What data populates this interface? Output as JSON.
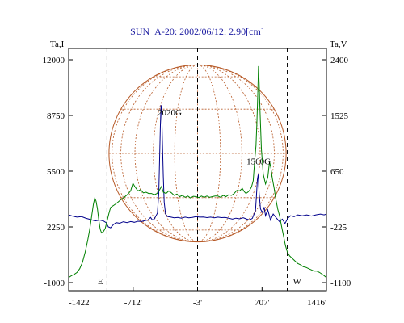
{
  "chart_data": {
    "type": "line",
    "title": "SUN_A-20: 2002/06/12: 2.90[cm]",
    "xlabel": "",
    "ylabel_left": "Ta,I",
    "ylabel_right": "Ta,V",
    "x_range": [
      -1422,
      1416
    ],
    "ylim_left": [
      -1000,
      12000
    ],
    "ylim_right": [
      -1100,
      2400
    ],
    "x_ticks": [
      {
        "value": -1422,
        "label": "-1422'"
      },
      {
        "value": -712,
        "label": "-712'"
      },
      {
        "value": -3,
        "label": "-3'"
      },
      {
        "value": 707,
        "label": "707'"
      },
      {
        "value": 1416,
        "label": "1416'"
      }
    ],
    "y_ticks_left": [
      {
        "value": 12000,
        "label": "12000"
      },
      {
        "value": 8750,
        "label": "8750"
      },
      {
        "value": 5500,
        "label": "5500"
      },
      {
        "value": 2250,
        "label": "2250"
      },
      {
        "value": -1000,
        "label": "-1000"
      }
    ],
    "y_ticks_right": [
      {
        "value": 2400,
        "label": "2400"
      },
      {
        "value": 1525,
        "label": "1525"
      },
      {
        "value": 650,
        "label": "650"
      },
      {
        "value": -225,
        "label": "-225"
      },
      {
        "value": -1100,
        "label": "-1100"
      }
    ],
    "vertical_markers": [
      {
        "x": -1000,
        "label": "E"
      },
      {
        "x": -3,
        "label": ""
      },
      {
        "x": 985,
        "label": "W"
      }
    ],
    "annotations": [
      {
        "text": "2020G",
        "x": -310,
        "y": 8750
      },
      {
        "text": "1560G",
        "x": 670,
        "y": 5900
      }
    ],
    "solar_disk": {
      "center_x": -3,
      "radius_arcmin": 975,
      "color": "#b85c2a"
    },
    "grid": false,
    "series": [
      {
        "axis": "left",
        "color": "#00008b",
        "points": [
          [
            -1422,
            2950
          ],
          [
            -1380,
            2880
          ],
          [
            -1330,
            2820
          ],
          [
            -1280,
            2850
          ],
          [
            -1230,
            2750
          ],
          [
            -1180,
            2680
          ],
          [
            -1130,
            2600
          ],
          [
            -1080,
            2650
          ],
          [
            -1040,
            2600
          ],
          [
            -1010,
            2500
          ],
          [
            -985,
            2250
          ],
          [
            -960,
            2200
          ],
          [
            -930,
            2380
          ],
          [
            -900,
            2500
          ],
          [
            -860,
            2460
          ],
          [
            -820,
            2550
          ],
          [
            -780,
            2500
          ],
          [
            -740,
            2560
          ],
          [
            -700,
            2520
          ],
          [
            -660,
            2580
          ],
          [
            -620,
            2560
          ],
          [
            -580,
            2620
          ],
          [
            -550,
            2650
          ],
          [
            -520,
            2800
          ],
          [
            -500,
            2650
          ],
          [
            -480,
            2700
          ],
          [
            -460,
            2900
          ],
          [
            -445,
            3050
          ],
          [
            -430,
            4200
          ],
          [
            -420,
            6400
          ],
          [
            -412,
            8200
          ],
          [
            -405,
            9350
          ],
          [
            -398,
            9000
          ],
          [
            -390,
            7200
          ],
          [
            -380,
            5200
          ],
          [
            -370,
            3700
          ],
          [
            -355,
            3000
          ],
          [
            -330,
            2850
          ],
          [
            -300,
            2830
          ],
          [
            -260,
            2780
          ],
          [
            -220,
            2800
          ],
          [
            -180,
            2760
          ],
          [
            -140,
            2820
          ],
          [
            -100,
            2780
          ],
          [
            -60,
            2800
          ],
          [
            -20,
            2850
          ],
          [
            20,
            2820
          ],
          [
            60,
            2830
          ],
          [
            100,
            2790
          ],
          [
            140,
            2820
          ],
          [
            180,
            2780
          ],
          [
            220,
            2820
          ],
          [
            260,
            2790
          ],
          [
            300,
            2800
          ],
          [
            340,
            2760
          ],
          [
            380,
            2700
          ],
          [
            420,
            2760
          ],
          [
            460,
            2720
          ],
          [
            500,
            2780
          ],
          [
            540,
            2700
          ],
          [
            570,
            2650
          ],
          [
            600,
            2750
          ],
          [
            620,
            3000
          ],
          [
            635,
            3200
          ],
          [
            645,
            4000
          ],
          [
            655,
            5000
          ],
          [
            665,
            5300
          ],
          [
            675,
            4200
          ],
          [
            690,
            3300
          ],
          [
            710,
            3100
          ],
          [
            730,
            3400
          ],
          [
            745,
            2900
          ],
          [
            770,
            3250
          ],
          [
            800,
            2650
          ],
          [
            830,
            3000
          ],
          [
            860,
            2800
          ],
          [
            900,
            2550
          ],
          [
            930,
            2700
          ],
          [
            960,
            2450
          ],
          [
            990,
            2750
          ],
          [
            1020,
            2900
          ],
          [
            1060,
            2850
          ],
          [
            1100,
            2950
          ],
          [
            1150,
            2900
          ],
          [
            1200,
            2950
          ],
          [
            1250,
            2880
          ],
          [
            1300,
            2950
          ],
          [
            1350,
            3000
          ],
          [
            1390,
            2950
          ],
          [
            1416,
            3000
          ]
        ]
      },
      {
        "axis": "right",
        "color": "#008000",
        "points": [
          [
            -1422,
            -1020
          ],
          [
            -1390,
            -990
          ],
          [
            -1360,
            -970
          ],
          [
            -1330,
            -940
          ],
          [
            -1300,
            -880
          ],
          [
            -1270,
            -780
          ],
          [
            -1240,
            -620
          ],
          [
            -1210,
            -420
          ],
          [
            -1190,
            -260
          ],
          [
            -1170,
            -70
          ],
          [
            -1150,
            130
          ],
          [
            -1135,
            230
          ],
          [
            -1120,
            180
          ],
          [
            -1105,
            60
          ],
          [
            -1090,
            -120
          ],
          [
            -1075,
            -260
          ],
          [
            -1060,
            -320
          ],
          [
            -1040,
            -300
          ],
          [
            -1020,
            -250
          ],
          [
            -1000,
            -140
          ],
          [
            -980,
            -20
          ],
          [
            -960,
            80
          ],
          [
            -930,
            110
          ],
          [
            -890,
            150
          ],
          [
            -850,
            200
          ],
          [
            -810,
            240
          ],
          [
            -770,
            290
          ],
          [
            -740,
            340
          ],
          [
            -715,
            460
          ],
          [
            -690,
            400
          ],
          [
            -660,
            340
          ],
          [
            -630,
            360
          ],
          [
            -600,
            310
          ],
          [
            -570,
            320
          ],
          [
            -540,
            300
          ],
          [
            -510,
            300
          ],
          [
            -480,
            280
          ],
          [
            -450,
            300
          ],
          [
            -420,
            360
          ],
          [
            -400,
            410
          ],
          [
            -380,
            320
          ],
          [
            -350,
            300
          ],
          [
            -320,
            340
          ],
          [
            -290,
            310
          ],
          [
            -260,
            270
          ],
          [
            -230,
            290
          ],
          [
            -200,
            250
          ],
          [
            -170,
            270
          ],
          [
            -140,
            240
          ],
          [
            -110,
            260
          ],
          [
            -80,
            230
          ],
          [
            -50,
            255
          ],
          [
            -20,
            250
          ],
          [
            10,
            235
          ],
          [
            40,
            260
          ],
          [
            70,
            240
          ],
          [
            100,
            260
          ],
          [
            130,
            240
          ],
          [
            160,
            250
          ],
          [
            190,
            260
          ],
          [
            220,
            260
          ],
          [
            250,
            240
          ],
          [
            280,
            270
          ],
          [
            310,
            250
          ],
          [
            340,
            280
          ],
          [
            370,
            270
          ],
          [
            400,
            300
          ],
          [
            430,
            350
          ],
          [
            460,
            340
          ],
          [
            490,
            380
          ],
          [
            510,
            330
          ],
          [
            530,
            300
          ],
          [
            550,
            320
          ],
          [
            570,
            350
          ],
          [
            590,
            400
          ],
          [
            610,
            500
          ],
          [
            625,
            800
          ],
          [
            640,
            1050
          ],
          [
            650,
            1400
          ],
          [
            660,
            1850
          ],
          [
            668,
            2300
          ],
          [
            675,
            2050
          ],
          [
            685,
            1600
          ],
          [
            700,
            1000
          ],
          [
            720,
            600
          ],
          [
            745,
            450
          ],
          [
            770,
            550
          ],
          [
            790,
            800
          ],
          [
            805,
            700
          ],
          [
            820,
            540
          ],
          [
            840,
            380
          ],
          [
            860,
            200
          ],
          [
            880,
            50
          ],
          [
            900,
            -50
          ],
          [
            920,
            -200
          ],
          [
            945,
            -380
          ],
          [
            965,
            -520
          ],
          [
            985,
            -620
          ],
          [
            1010,
            -680
          ],
          [
            1040,
            -720
          ],
          [
            1070,
            -760
          ],
          [
            1100,
            -800
          ],
          [
            1130,
            -820
          ],
          [
            1160,
            -850
          ],
          [
            1190,
            -860
          ],
          [
            1220,
            -880
          ],
          [
            1250,
            -900
          ],
          [
            1280,
            -920
          ],
          [
            1310,
            -920
          ],
          [
            1340,
            -940
          ],
          [
            1380,
            -980
          ],
          [
            1416,
            -1020
          ]
        ]
      }
    ]
  }
}
